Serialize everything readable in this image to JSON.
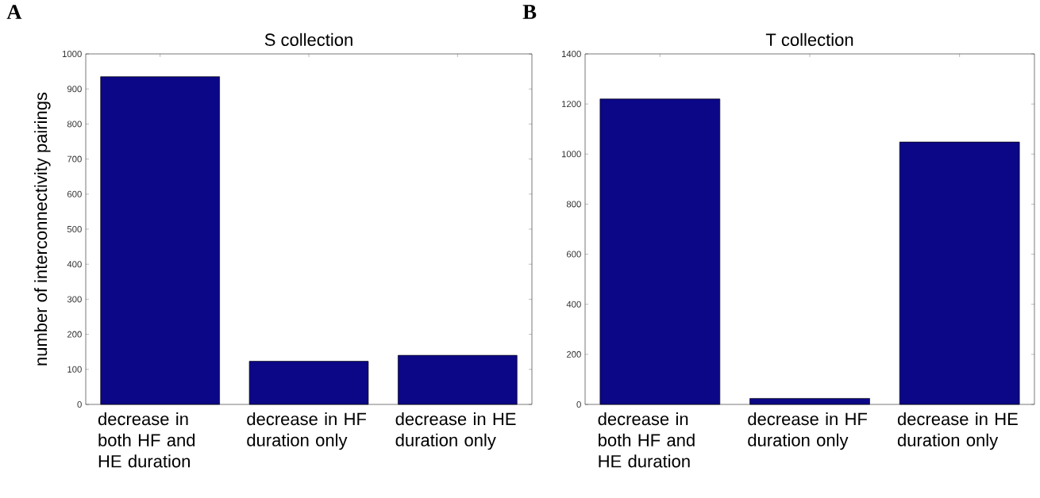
{
  "chart_data": [
    {
      "type": "bar",
      "title": "S collection",
      "ylabel": "number of interconnectivity pairings",
      "annotations": [
        "A"
      ],
      "categories": [
        "decrease in both HF and HE duration",
        "decrease in HF duration only",
        "decrease in HE duration only"
      ],
      "values": [
        935,
        123,
        140
      ],
      "color": "#0c0786",
      "ylim": [
        0,
        1000
      ],
      "yticks": [
        0,
        100,
        200,
        300,
        400,
        500,
        600,
        700,
        800,
        900,
        1000
      ]
    },
    {
      "type": "bar",
      "title": "T collection",
      "annotations": [
        "B"
      ],
      "categories": [
        "decrease in both HF and HE duration",
        "decrease in HF duration only",
        "decrease in HE duration only"
      ],
      "values": [
        1220,
        24,
        1048
      ],
      "color": "#0c0786",
      "ylim": [
        0,
        1400
      ],
      "yticks": [
        0,
        200,
        400,
        600,
        800,
        1000,
        1200,
        1400
      ]
    }
  ]
}
